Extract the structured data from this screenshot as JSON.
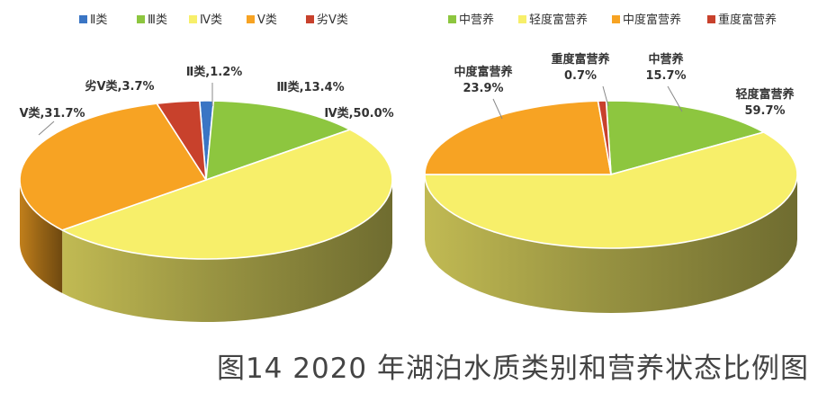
{
  "caption": "图14  2020 年湖泊水质类别和营养状态比例图",
  "chart_data": [
    {
      "type": "pie",
      "id": "water-quality",
      "categories": [
        "Ⅱ类",
        "Ⅲ类",
        "Ⅳ类",
        "Ⅴ类",
        "劣Ⅴ类"
      ],
      "values": [
        1.2,
        13.4,
        50.0,
        31.7,
        3.7
      ],
      "colors": [
        "#3a75c4",
        "#8dc63f",
        "#f7ef6a",
        "#f7a323",
        "#c8412c"
      ],
      "data_labels": [
        "Ⅱ类,1.2%",
        "Ⅲ类,13.4%",
        "Ⅳ类,50.0%",
        "Ⅴ类,31.7%",
        "劣Ⅴ类,3.7%"
      ],
      "legend": "top",
      "style": "3d"
    },
    {
      "type": "pie",
      "id": "trophic-state",
      "categories": [
        "中营养",
        "轻度富营养",
        "中度富营养",
        "重度富营养"
      ],
      "values": [
        15.7,
        59.7,
        23.9,
        0.7
      ],
      "colors": [
        "#8dc63f",
        "#f7ef6a",
        "#f7a323",
        "#c8412c"
      ],
      "data_labels": [
        [
          "中营养",
          "15.7%"
        ],
        [
          "轻度富营养",
          "59.7%"
        ],
        [
          "中度富营养",
          "23.9%"
        ],
        [
          "重度富营养",
          "0.7%"
        ]
      ],
      "legend": "top",
      "style": "3d"
    }
  ]
}
